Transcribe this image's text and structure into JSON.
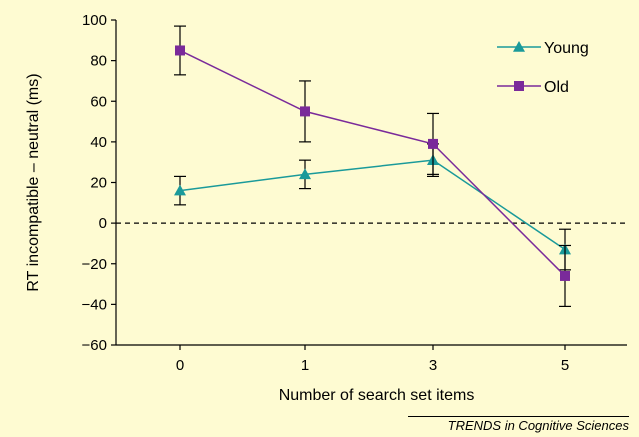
{
  "colors": {
    "background": "#fefbd2",
    "young": "#1a9a9a",
    "old": "#7a2a9a"
  },
  "credit": "TRENDS in Cognitive Sciences",
  "chart_data": {
    "type": "line",
    "title": "",
    "xlabel": "Number of search set items",
    "ylabel": "RT incompatible – neutral (ms)",
    "categories": [
      "0",
      "1",
      "3",
      "5"
    ],
    "ylim": [
      -60,
      100
    ],
    "yticks": [
      -60,
      -40,
      -20,
      0,
      20,
      40,
      60,
      80,
      100
    ],
    "ytick_labels": [
      "−60",
      "−40",
      "−20",
      "0",
      "20",
      "40",
      "60",
      "80",
      "100"
    ],
    "reference_line": 0,
    "legend_position": "top-right",
    "series": [
      {
        "name": "Young",
        "marker": "triangle",
        "values": [
          16,
          24,
          31,
          -13
        ],
        "errors": [
          7,
          7,
          8,
          10
        ]
      },
      {
        "name": "Old",
        "marker": "square",
        "values": [
          85,
          55,
          39,
          -26
        ],
        "errors": [
          12,
          15,
          15,
          15
        ]
      }
    ]
  }
}
